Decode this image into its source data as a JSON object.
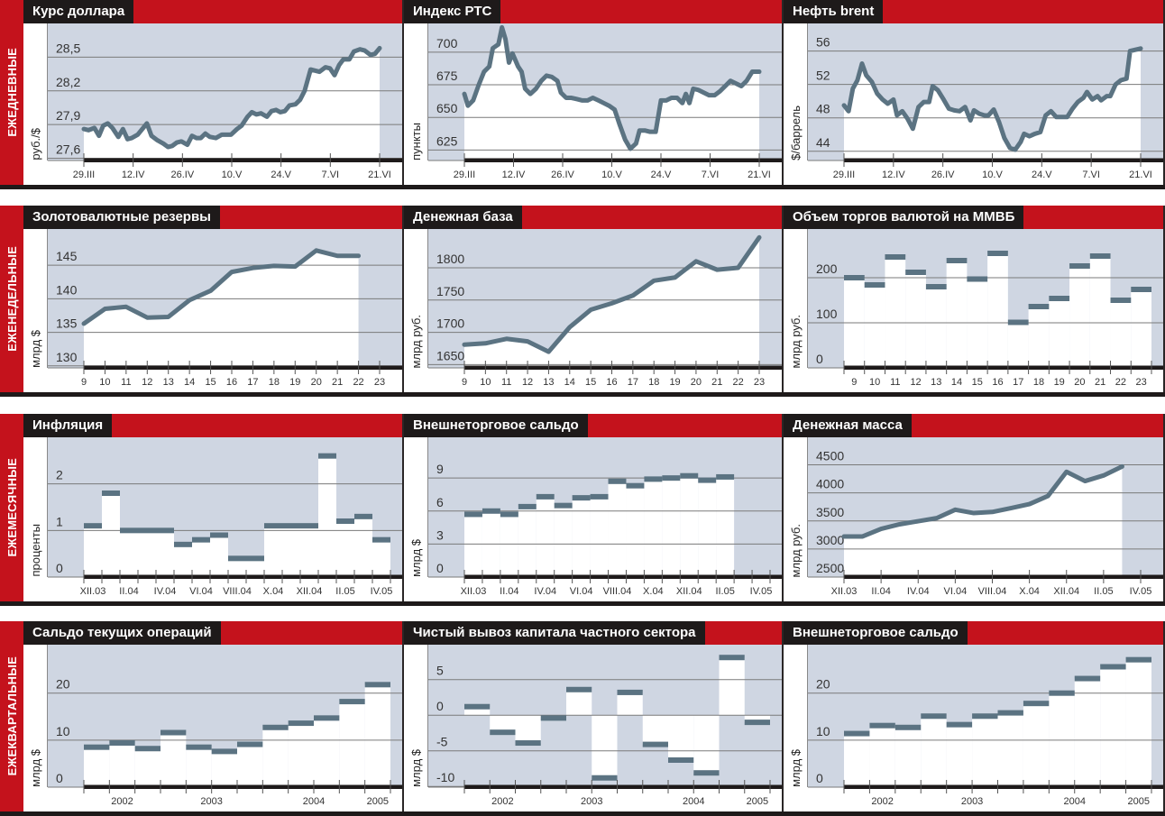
{
  "colors": {
    "red": "#c4121c",
    "black": "#1e1a1a",
    "plot_bg": "#cfd6e2",
    "series": "#5b7382",
    "grid": "#7a7a7a"
  },
  "rows": [
    {
      "label": "ЕЖЕДНЕВНЫЕ"
    },
    {
      "label": "ЕЖЕНЕДЕЛЬНЫЕ"
    },
    {
      "label": "ЕЖЕМЕСЯЧНЫЕ"
    },
    {
      "label": "ЕЖЕКВАРТАЛЬНЫЕ"
    }
  ],
  "chart_data": [
    {
      "type": "line",
      "title": "Курс доллара",
      "ylabel": "руб./$",
      "ylim": [
        27.58,
        28.8
      ],
      "yticks": [
        27.6,
        27.9,
        28.2,
        28.5
      ],
      "ytick_labels": [
        "27,6",
        "27,9",
        "28,2",
        "28,5"
      ],
      "xlim": [
        0,
        84
      ],
      "xticks": [
        0,
        14,
        28,
        42,
        56,
        70,
        84
      ],
      "xtick_labels": [
        "29.III",
        "12.IV",
        "26.IV",
        "10.V",
        "24.V",
        "7.VI",
        "21.VI"
      ],
      "x": [
        0,
        1.3,
        3,
        4.3,
        5.5,
        6.8,
        8.1,
        9.8,
        11.1,
        12.4,
        13.6,
        15.3,
        17.9,
        19.2,
        20.9,
        22.6,
        23.9,
        25.1,
        26.4,
        27.7,
        29.4,
        30.7,
        32,
        33.2,
        34.5,
        35.8,
        37.5,
        39.2,
        41.8,
        43.5,
        44.8,
        46.5,
        47.7,
        49,
        50.3,
        52,
        53.3,
        54.6,
        55.8,
        57.1,
        58.4,
        60.1,
        61.4,
        62.7,
        64.4,
        66.9,
        68.6,
        69.9,
        71.2,
        72.5,
        73.7,
        75.4,
        76.7,
        78.4,
        79.7,
        81.4,
        82.7,
        84
      ],
      "values": [
        27.86,
        27.85,
        27.87,
        27.8,
        27.89,
        27.91,
        27.87,
        27.79,
        27.86,
        27.77,
        27.78,
        27.81,
        27.91,
        27.8,
        27.76,
        27.73,
        27.7,
        27.71,
        27.74,
        27.75,
        27.72,
        27.8,
        27.78,
        27.78,
        27.82,
        27.79,
        27.78,
        27.81,
        27.81,
        27.86,
        27.89,
        27.97,
        28.01,
        27.99,
        28.0,
        27.97,
        28.02,
        28.03,
        28.01,
        28.02,
        28.07,
        28.08,
        28.12,
        28.2,
        28.39,
        28.37,
        28.41,
        28.4,
        28.34,
        28.43,
        28.48,
        28.48,
        28.55,
        28.57,
        28.56,
        28.52,
        28.53,
        28.58
      ]
    },
    {
      "type": "line",
      "title": "Индекс РТС",
      "ylabel": "пункты",
      "ylim": [
        617,
        722
      ],
      "yticks": [
        625,
        650,
        675,
        700
      ],
      "ytick_labels": [
        "625",
        "650",
        "675",
        "700"
      ],
      "xlim": [
        0,
        84
      ],
      "xticks": [
        0,
        14,
        28,
        42,
        56,
        70,
        84
      ],
      "xtick_labels": [
        "29.III",
        "12.IV",
        "26.IV",
        "10.V",
        "24.V",
        "7.VI",
        "21.VI"
      ],
      "x": [
        0,
        1,
        2.5,
        4.1,
        5.6,
        7.1,
        8.1,
        9.7,
        10.7,
        11.7,
        12.7,
        13.7,
        15.3,
        16.3,
        17.3,
        18.8,
        20.4,
        21.9,
        23.4,
        24.9,
        26.5,
        27.5,
        29,
        30.5,
        32.1,
        33.6,
        35.1,
        36.6,
        38.2,
        39.7,
        41.2,
        42.8,
        44.3,
        45.8,
        47.3,
        48.9,
        49.9,
        51.4,
        52.9,
        54.5,
        56,
        57.5,
        59,
        60.6,
        62.1,
        63.1,
        64.1,
        65.2,
        66.7,
        68.2,
        69.7,
        71.3,
        72.8,
        74.3,
        75.8,
        77.4,
        78.9,
        80.4,
        82,
        84
      ],
      "values": [
        668,
        659,
        663,
        675,
        685,
        689,
        703,
        706,
        719,
        710,
        692,
        699,
        689,
        685,
        672,
        668,
        672,
        678,
        682,
        681,
        678,
        669,
        665,
        665,
        664,
        663,
        663,
        665,
        663,
        661,
        659,
        656,
        644,
        633,
        626,
        630,
        640,
        640,
        639,
        639,
        663,
        663,
        665,
        665,
        661,
        668,
        661,
        672,
        671,
        669,
        667,
        667,
        670,
        674,
        678,
        676,
        674,
        678,
        685,
        685
      ]
    },
    {
      "type": "line",
      "title": "Нефть brent",
      "ylabel": "$/баррель",
      "ylim": [
        42.9,
        59.3
      ],
      "yticks": [
        44,
        48,
        52,
        56
      ],
      "ytick_labels": [
        "44",
        "48",
        "52",
        "56"
      ],
      "xlim": [
        0,
        84
      ],
      "xticks": [
        0,
        14,
        28,
        42,
        56,
        70,
        84
      ],
      "xtick_labels": [
        "29.III",
        "12.IV",
        "26.IV",
        "10.V",
        "24.V",
        "7.VI",
        "21.VI"
      ],
      "x": [
        0,
        1.3,
        2.5,
        3.8,
        5.1,
        6.3,
        7.9,
        9.4,
        10.9,
        12.4,
        14,
        15,
        16.5,
        18,
        19.5,
        21.1,
        22.6,
        24.1,
        25.1,
        26.6,
        28.2,
        29.7,
        31.2,
        32.7,
        34.3,
        35.8,
        36.8,
        38.3,
        39.8,
        40.9,
        42.4,
        43.9,
        45.4,
        47,
        48.5,
        50,
        51,
        52.5,
        54.1,
        55.6,
        57.1,
        58.6,
        60.1,
        61.7,
        63.2,
        64.7,
        66.2,
        67.8,
        68.8,
        70.3,
        71.8,
        72.8,
        74.4,
        75.4,
        76.9,
        78.4,
        80,
        81,
        84
      ],
      "values": [
        49.5,
        48.8,
        51.5,
        52.5,
        54.5,
        53.1,
        52.3,
        50.9,
        50.2,
        49.7,
        50.2,
        48.3,
        48.8,
        47.9,
        46.7,
        49.3,
        49.9,
        49.9,
        51.8,
        51.3,
        50.2,
        49.1,
        48.9,
        48.8,
        49.3,
        47.7,
        48.9,
        48.5,
        48.3,
        48.3,
        49.0,
        47.5,
        45.6,
        44.4,
        44.2,
        45.1,
        46.1,
        45.8,
        46.1,
        46.3,
        48.3,
        48.8,
        48.1,
        48.1,
        48.1,
        49.1,
        49.9,
        50.4,
        51.1,
        50.2,
        50.6,
        50.1,
        50.6,
        50.6,
        52.0,
        52.5,
        52.7,
        56.0,
        56.3
      ]
    },
    {
      "type": "line",
      "title": "Золотовалютные резервы",
      "ylabel": "млрд $",
      "ylim": [
        129.7,
        150.4
      ],
      "yticks": [
        130,
        135,
        140,
        145
      ],
      "ytick_labels": [
        "130",
        "135",
        "140",
        "145"
      ],
      "xlim": [
        9,
        23
      ],
      "xticks": [
        9,
        10,
        11,
        12,
        13,
        14,
        15,
        16,
        17,
        18,
        19,
        20,
        21,
        22,
        23
      ],
      "xtick_labels": [
        "9",
        "10",
        "11",
        "12",
        "13",
        "14",
        "15",
        "16",
        "17",
        "18",
        "19",
        "20",
        "21",
        "22",
        "23"
      ],
      "x": [
        9,
        10,
        11,
        12,
        13,
        14,
        15,
        16,
        17,
        18,
        19,
        20,
        21,
        22
      ],
      "values": [
        136.3,
        138.5,
        138.8,
        137.2,
        137.3,
        139.8,
        141.2,
        144.0,
        144.6,
        144.9,
        144.8,
        147.2,
        146.4,
        146.4
      ]
    },
    {
      "type": "line",
      "title": "Денежная база",
      "ylabel": "млрд руб.",
      "ylim": [
        1645,
        1860
      ],
      "yticks": [
        1650,
        1700,
        1750,
        1800
      ],
      "ytick_labels": [
        "1650",
        "1700",
        "1750",
        "1800"
      ],
      "xlim": [
        9,
        23
      ],
      "xticks": [
        9,
        10,
        11,
        12,
        13,
        14,
        15,
        16,
        17,
        18,
        19,
        20,
        21,
        22,
        23
      ],
      "xtick_labels": [
        "9",
        "10",
        "11",
        "12",
        "13",
        "14",
        "15",
        "16",
        "17",
        "18",
        "19",
        "20",
        "21",
        "22",
        "23"
      ],
      "x": [
        9,
        10,
        11,
        12,
        13,
        14,
        15,
        16,
        17,
        18,
        19,
        20,
        21,
        22,
        23
      ],
      "values": [
        1681,
        1683,
        1690,
        1686,
        1670,
        1708,
        1735,
        1745,
        1757,
        1780,
        1785,
        1810,
        1797,
        1800,
        1847
      ]
    },
    {
      "type": "step",
      "title": "Объем торгов валютой на ММВБ",
      "ylabel": "млрд руб.",
      "ylim": [
        0,
        308
      ],
      "yticks": [
        0,
        100,
        200
      ],
      "ytick_labels": [
        "0",
        "100",
        "200"
      ],
      "xlim": [
        8.5,
        23.5
      ],
      "xticks": [
        9,
        10,
        11,
        12,
        13,
        14,
        15,
        16,
        17,
        18,
        19,
        20,
        21,
        22,
        23
      ],
      "xtick_labels": [
        "9",
        "10",
        "11",
        "12",
        "13",
        "14",
        "15",
        "16",
        "17",
        "18",
        "19",
        "20",
        "21",
        "22",
        "23"
      ],
      "x": [
        9,
        10,
        11,
        12,
        13,
        14,
        15,
        16,
        17,
        18,
        19,
        20,
        21,
        22,
        23
      ],
      "values": [
        200,
        184,
        246,
        212,
        180,
        238,
        197,
        254,
        101,
        136,
        154,
        226,
        248,
        150,
        174
      ]
    },
    {
      "type": "step",
      "title": "Инфляция",
      "ylabel": "проценты",
      "ylim": [
        0,
        3.0
      ],
      "yticks": [
        0,
        1,
        2
      ],
      "ytick_labels": [
        "0",
        "1",
        "2"
      ],
      "xlim": [
        -0.5,
        16.5
      ],
      "xticks": [
        0,
        2,
        4,
        6,
        8,
        10,
        12,
        14,
        16
      ],
      "xtick_labels": [
        "XII.03",
        "II.04",
        "IV.04",
        "VI.04",
        "VIII.04",
        "X.04",
        "XII.04",
        "II.05",
        "IV.05"
      ],
      "values": [
        1.1,
        1.8,
        1.0,
        1.0,
        1.0,
        0.7,
        0.8,
        0.9,
        0.4,
        0.4,
        1.1,
        1.1,
        1.1,
        2.6,
        1.2,
        1.3,
        0.8
      ]
    },
    {
      "type": "step",
      "title": "Внешнеторговое сальдо",
      "ylabel": "млрд $",
      "ylim": [
        0,
        12.7
      ],
      "yticks": [
        0,
        3,
        6,
        9
      ],
      "ytick_labels": [
        "0",
        "3",
        "6",
        "9"
      ],
      "xlim": [
        -0.5,
        16.5
      ],
      "xticks": [
        0,
        2,
        4,
        6,
        8,
        10,
        12,
        14,
        16
      ],
      "xtick_labels": [
        "XII.03",
        "II.04",
        "IV.04",
        "VI.04",
        "VIII.04",
        "X.04",
        "XII.04",
        "II.05",
        "IV.05"
      ],
      "values": [
        5.7,
        6.0,
        5.7,
        6.4,
        7.3,
        6.5,
        7.2,
        7.3,
        8.7,
        8.3,
        8.9,
        9.0,
        9.2,
        8.8,
        9.1
      ]
    },
    {
      "type": "line",
      "title": "Денежная масса",
      "ylabel": "млрд руб.",
      "ylim": [
        2500,
        4990
      ],
      "yticks": [
        2500,
        3000,
        3500,
        4000,
        4500
      ],
      "ytick_labels": [
        "2500",
        "3000",
        "3500",
        "4000",
        "4500"
      ],
      "xlim": [
        0,
        16
      ],
      "xticks": [
        0,
        2,
        4,
        6,
        8,
        10,
        12,
        14,
        16
      ],
      "xtick_labels": [
        "XII.03",
        "II.04",
        "IV.04",
        "VI.04",
        "VIII.04",
        "X.04",
        "XII.04",
        "II.05",
        "IV.05"
      ],
      "x": [
        0,
        1,
        2,
        3,
        4,
        5,
        6,
        7,
        8,
        9,
        10,
        11,
        12,
        13,
        14,
        15
      ],
      "values": [
        3223,
        3223,
        3359,
        3440,
        3495,
        3550,
        3700,
        3640,
        3660,
        3728,
        3800,
        3945,
        4375,
        4210,
        4310,
        4470
      ]
    },
    {
      "type": "step",
      "title": "Сальдо текущих операций",
      "ylabel": "млрд $",
      "ylim": [
        0,
        30.3
      ],
      "yticks": [
        0,
        10,
        20
      ],
      "ytick_labels": [
        "0",
        "10",
        "20"
      ],
      "xlim": [
        -0.5,
        11.5
      ],
      "xticks": [
        1,
        4.5,
        8.5,
        11
      ],
      "xtick_labels": [
        "2002",
        "2003",
        "2004",
        "2005"
      ],
      "values": [
        8.5,
        9.4,
        8.2,
        11.6,
        8.5,
        7.6,
        9.1,
        12.7,
        13.6,
        14.7,
        18.2,
        21.8
      ]
    },
    {
      "type": "step",
      "title": "Чистый вывоз капитала частного сектора",
      "ylabel": "млрд $",
      "ylim": [
        -10.1,
        9.9
      ],
      "yticks": [
        -10,
        -5,
        0,
        5
      ],
      "ytick_labels": [
        "-10",
        "-5",
        "0",
        "5"
      ],
      "xlim": [
        -0.5,
        11.5
      ],
      "xticks": [
        1,
        4.5,
        8.5,
        11
      ],
      "xtick_labels": [
        "2002",
        "2003",
        "2004",
        "2005"
      ],
      "values": [
        1.2,
        -2.4,
        -3.9,
        -0.4,
        3.6,
        -8.8,
        3.2,
        -4.1,
        -6.3,
        -8.1,
        8.1,
        -1.0
      ]
    },
    {
      "type": "step",
      "title": "Внешнеторговое сальдо",
      "ylabel": "млрд $",
      "ylim": [
        0,
        30.3
      ],
      "yticks": [
        0,
        10,
        20
      ],
      "ytick_labels": [
        "0",
        "10",
        "20"
      ],
      "xlim": [
        -0.5,
        11.5
      ],
      "xticks": [
        1,
        4.5,
        8.5,
        11
      ],
      "xtick_labels": [
        "2002",
        "2003",
        "2004",
        "2005"
      ],
      "values": [
        11.4,
        13.1,
        12.7,
        15.1,
        13.3,
        15.1,
        15.8,
        17.8,
        20.0,
        23.1,
        25.6,
        27.1
      ]
    }
  ]
}
